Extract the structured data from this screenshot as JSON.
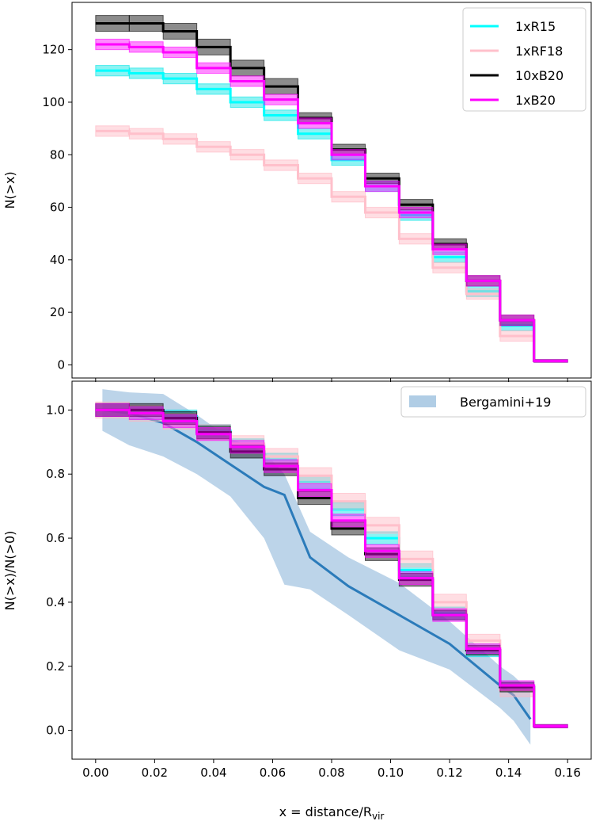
{
  "chart_data": [
    {
      "type": "line",
      "style": "step",
      "title": "",
      "xlabel": "",
      "ylabel": "N(>x)",
      "xlim": [
        -0.008,
        0.168
      ],
      "ylim": [
        -5,
        138
      ],
      "yticks": [
        0,
        20,
        40,
        60,
        80,
        100,
        120
      ],
      "ytick_labels": [
        "0",
        "20",
        "40",
        "60",
        "80",
        "100",
        "120"
      ],
      "legend": {
        "placement": "top-right"
      },
      "x_edges": [
        0.0,
        0.0114,
        0.0229,
        0.0343,
        0.0457,
        0.0571,
        0.0686,
        0.08,
        0.0914,
        0.1029,
        0.1143,
        0.1257,
        0.1371,
        0.1486,
        0.16
      ],
      "series": [
        {
          "name": "1xR15",
          "color": "#00ffff",
          "band_color": "#00e5e5",
          "values": [
            112,
            111,
            109,
            105,
            100,
            95,
            88,
            78,
            68,
            57,
            41,
            28,
            15,
            1.5
          ],
          "band": [
            2,
            2,
            2,
            2,
            2,
            2,
            2,
            2,
            2,
            2,
            2,
            2,
            2,
            0.5
          ]
        },
        {
          "name": "1xRF18",
          "color": "#ffc0cb",
          "band_color": "#ffb6c1",
          "values": [
            89,
            88,
            86,
            83,
            80,
            76,
            71,
            64,
            58,
            48,
            37,
            27,
            11,
            1.5
          ],
          "band": [
            2,
            2,
            2,
            2,
            2,
            2,
            2,
            2,
            2,
            2,
            2,
            2,
            2,
            0.5
          ]
        },
        {
          "name": "10xB20",
          "color": "#000000",
          "band_color": "#000000",
          "values": [
            130,
            130,
            127,
            121,
            113,
            106,
            94,
            82,
            71,
            61,
            46,
            32,
            17,
            1.5
          ],
          "band": [
            3,
            3,
            3,
            3,
            3,
            3,
            2,
            2,
            2,
            2,
            2,
            2,
            2,
            0.5
          ]
        },
        {
          "name": "1xB20",
          "color": "#ff00ff",
          "band_color": "#ff00ff",
          "values": [
            122,
            121,
            119,
            113,
            108,
            101,
            92,
            80,
            68,
            58,
            44,
            32,
            17,
            1.5
          ],
          "band": [
            2,
            2,
            2,
            2,
            2,
            2,
            2,
            2,
            2,
            2,
            2,
            2,
            2,
            0.5
          ]
        }
      ]
    },
    {
      "type": "line",
      "style": "step",
      "title": "",
      "xlabel": "x = distance/R",
      "xlabel_sub": "vir",
      "ylabel": "N(>x)/N(>0)",
      "xlim": [
        -0.008,
        0.168
      ],
      "ylim": [
        -0.09,
        1.09
      ],
      "xticks": [
        0.0,
        0.02,
        0.04,
        0.06,
        0.08,
        0.1,
        0.12,
        0.14,
        0.16
      ],
      "xtick_labels": [
        "0.00",
        "0.02",
        "0.04",
        "0.06",
        "0.08",
        "0.10",
        "0.12",
        "0.14",
        "0.16"
      ],
      "yticks": [
        0.0,
        0.2,
        0.4,
        0.6,
        0.8,
        1.0
      ],
      "ytick_labels": [
        "0.0",
        "0.2",
        "0.4",
        "0.6",
        "0.8",
        "1.0"
      ],
      "legend": {
        "placement": "top-right"
      },
      "x_edges": [
        0.0,
        0.0114,
        0.0229,
        0.0343,
        0.0457,
        0.0571,
        0.0686,
        0.08,
        0.0914,
        0.1029,
        0.1143,
        0.1257,
        0.1371,
        0.1486,
        0.16
      ],
      "series": [
        {
          "color": "#00ffff",
          "band_color": "#00e5e5",
          "values": [
            1.0,
            0.99,
            0.98,
            0.935,
            0.89,
            0.845,
            0.775,
            0.69,
            0.6,
            0.5,
            0.365,
            0.25,
            0.135,
            0.013
          ],
          "band": [
            0.02,
            0.02,
            0.02,
            0.02,
            0.02,
            0.02,
            0.02,
            0.02,
            0.02,
            0.02,
            0.02,
            0.02,
            0.015,
            0.005
          ]
        },
        {
          "color": "#ffc0cb",
          "band_color": "#ffb6c1",
          "values": [
            1.0,
            0.99,
            0.965,
            0.93,
            0.895,
            0.855,
            0.795,
            0.715,
            0.64,
            0.535,
            0.4,
            0.28,
            0.125,
            0.013
          ],
          "band": [
            0.025,
            0.025,
            0.025,
            0.025,
            0.025,
            0.025,
            0.025,
            0.025,
            0.025,
            0.025,
            0.025,
            0.02,
            0.02,
            0.005
          ]
        },
        {
          "color": "#000000",
          "band_color": "#000000",
          "values": [
            1.0,
            1.0,
            0.975,
            0.93,
            0.87,
            0.815,
            0.725,
            0.63,
            0.55,
            0.47,
            0.36,
            0.25,
            0.135,
            0.013
          ],
          "band": [
            0.02,
            0.02,
            0.02,
            0.02,
            0.02,
            0.02,
            0.02,
            0.02,
            0.02,
            0.02,
            0.015,
            0.015,
            0.015,
            0.005
          ]
        },
        {
          "color": "#ff00ff",
          "band_color": "#ff00ff",
          "values": [
            1.0,
            0.99,
            0.965,
            0.925,
            0.885,
            0.825,
            0.75,
            0.655,
            0.56,
            0.475,
            0.36,
            0.255,
            0.14,
            0.013
          ],
          "band": [
            0.02,
            0.02,
            0.02,
            0.02,
            0.02,
            0.02,
            0.02,
            0.02,
            0.02,
            0.02,
            0.02,
            0.015,
            0.015,
            0.005
          ]
        }
      ],
      "reference": {
        "name": "Bergamini+19",
        "line_color": "#2b7bba",
        "band_color": "#b0cde5",
        "x": [
          0.0023,
          0.0114,
          0.0229,
          0.0343,
          0.0457,
          0.0571,
          0.064,
          0.0727,
          0.0857,
          0.1029,
          0.12,
          0.1371,
          0.1417,
          0.1474
        ],
        "y": [
          1.0,
          0.99,
          0.96,
          0.9,
          0.83,
          0.76,
          0.735,
          0.54,
          0.45,
          0.36,
          0.27,
          0.14,
          0.11,
          0.035
        ],
        "lower": [
          0.935,
          0.89,
          0.855,
          0.8,
          0.73,
          0.6,
          0.455,
          0.44,
          0.36,
          0.25,
          0.19,
          0.07,
          0.03,
          -0.045
        ],
        "upper": [
          1.065,
          1.055,
          1.05,
          0.985,
          0.91,
          0.87,
          0.8,
          0.62,
          0.54,
          0.46,
          0.34,
          0.2,
          0.17,
          0.12
        ]
      }
    }
  ]
}
